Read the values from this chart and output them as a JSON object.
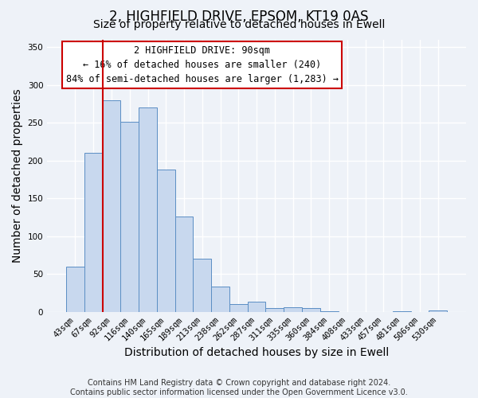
{
  "title": "2, HIGHFIELD DRIVE, EPSOM, KT19 0AS",
  "subtitle": "Size of property relative to detached houses in Ewell",
  "xlabel": "Distribution of detached houses by size in Ewell",
  "ylabel": "Number of detached properties",
  "bar_labels": [
    "43sqm",
    "67sqm",
    "92sqm",
    "116sqm",
    "140sqm",
    "165sqm",
    "189sqm",
    "213sqm",
    "238sqm",
    "262sqm",
    "287sqm",
    "311sqm",
    "335sqm",
    "360sqm",
    "384sqm",
    "408sqm",
    "433sqm",
    "457sqm",
    "481sqm",
    "506sqm",
    "530sqm"
  ],
  "bar_heights": [
    60,
    210,
    280,
    252,
    270,
    188,
    126,
    70,
    34,
    11,
    14,
    5,
    6,
    5,
    1,
    0,
    0,
    0,
    1,
    0,
    2
  ],
  "bar_color": "#c8d8ee",
  "bar_edge_color": "#5b8ec4",
  "vline_x_index": 2,
  "vline_color": "#cc0000",
  "annotation_line1": "2 HIGHFIELD DRIVE: 90sqm",
  "annotation_line2": "← 16% of detached houses are smaller (240)",
  "annotation_line3": "84% of semi-detached houses are larger (1,283) →",
  "annotation_box_color": "#ffffff",
  "annotation_box_edge_color": "#cc0000",
  "ylim": [
    0,
    360
  ],
  "yticks": [
    0,
    50,
    100,
    150,
    200,
    250,
    300,
    350
  ],
  "footer_text": "Contains HM Land Registry data © Crown copyright and database right 2024.\nContains public sector information licensed under the Open Government Licence v3.0.",
  "bg_color": "#eef2f8",
  "plot_bg_color": "#eef2f8",
  "grid_color": "#ffffff",
  "title_fontsize": 12,
  "subtitle_fontsize": 10,
  "axis_label_fontsize": 10,
  "tick_fontsize": 7.5,
  "annotation_fontsize": 8.5,
  "footer_fontsize": 7
}
